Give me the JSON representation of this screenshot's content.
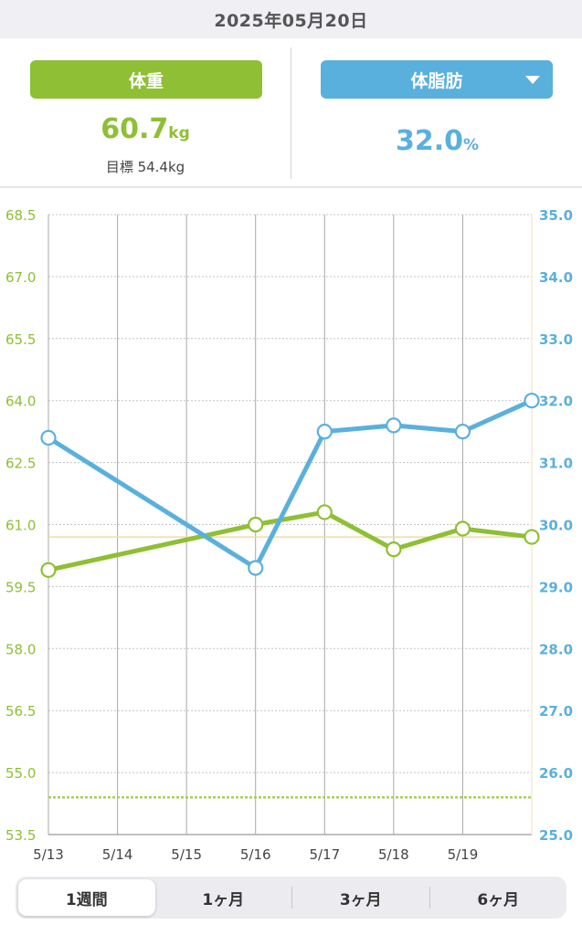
{
  "header": {
    "date": "2025年05月20日"
  },
  "weight_panel": {
    "button_label": "体重",
    "value": "60.7",
    "unit": "kg",
    "goal_label": "目標 54.4kg"
  },
  "fat_panel": {
    "button_label": "体脂肪",
    "value": "32.0",
    "unit": "%"
  },
  "range_tabs": [
    {
      "label": "1週間",
      "active": true
    },
    {
      "label": "1ヶ月",
      "active": false
    },
    {
      "label": "3ヶ月",
      "active": false
    },
    {
      "label": "6ヶ月",
      "active": false
    }
  ],
  "colors": {
    "weight": "#8ebf34",
    "fat": "#5ab0dd",
    "goal_line": "#a8cf5c",
    "current_line": "#f3d9a6"
  },
  "chart_data": {
    "type": "line",
    "x": [
      "5/13",
      "5/14",
      "5/15",
      "5/16",
      "5/17",
      "5/18",
      "5/19",
      "5/20"
    ],
    "x_tick_labels": [
      "5/13",
      "5/14",
      "5/15",
      "5/16",
      "5/17",
      "5/18",
      "5/19"
    ],
    "left_axis": {
      "ylim": [
        53.5,
        68.5
      ],
      "ticks": [
        "53.5",
        "55.0",
        "56.5",
        "58.0",
        "59.5",
        "61.0",
        "62.5",
        "64.0",
        "65.5",
        "67.0",
        "68.5"
      ]
    },
    "right_axis": {
      "ylim": [
        25.0,
        35.0
      ],
      "ticks": [
        "25.0",
        "26.0",
        "27.0",
        "28.0",
        "29.0",
        "30.0",
        "31.0",
        "32.0",
        "33.0",
        "34.0",
        "35.0"
      ]
    },
    "series": [
      {
        "axis": "left",
        "color": "#8ebf34",
        "points": [
          {
            "x": "5/13",
            "y": 59.9
          },
          {
            "x": "5/16",
            "y": 61.0
          },
          {
            "x": "5/17",
            "y": 61.3
          },
          {
            "x": "5/18",
            "y": 60.4
          },
          {
            "x": "5/19",
            "y": 60.9
          },
          {
            "x": "5/20",
            "y": 60.7
          }
        ]
      },
      {
        "axis": "right",
        "color": "#5ab0dd",
        "points": [
          {
            "x": "5/13",
            "y": 31.4
          },
          {
            "x": "5/16",
            "y": 29.3
          },
          {
            "x": "5/17",
            "y": 31.5
          },
          {
            "x": "5/18",
            "y": 31.6
          },
          {
            "x": "5/19",
            "y": 31.5
          },
          {
            "x": "5/20",
            "y": 32.0
          }
        ]
      }
    ],
    "goal_line": {
      "axis": "left",
      "value": 54.4
    },
    "current_line": {
      "axis": "left",
      "value": 60.7
    },
    "grid": true
  }
}
